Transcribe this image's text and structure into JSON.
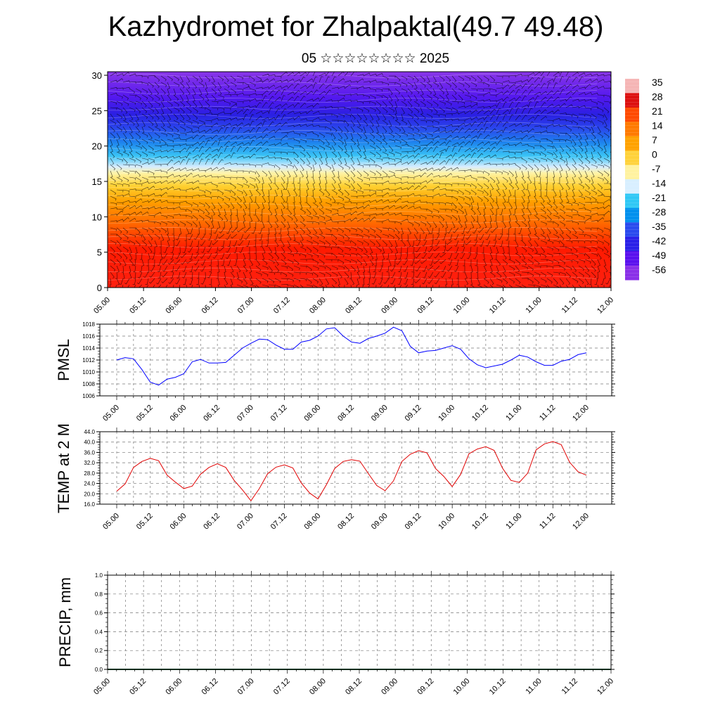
{
  "header": {
    "title": "Kazhydromet for Zhalpaktal(49.7 49.48)",
    "subtitle": "05 ☆☆☆☆☆☆☆☆ 2025"
  },
  "time_labels": [
    "05.00",
    "05.12",
    "06.00",
    "06.12",
    "07.00",
    "07.12",
    "08.00",
    "08.12",
    "09.00",
    "09.12",
    "10.00",
    "10.12",
    "11.00",
    "11.12",
    "12.00"
  ],
  "chart_data": [
    {
      "type": "heatmap",
      "title": "",
      "xlabel": "",
      "ylabel": "",
      "x_ticks": [
        "05.00",
        "05.12",
        "06.00",
        "06.12",
        "07.00",
        "07.12",
        "08.00",
        "08.12",
        "09.00",
        "09.12",
        "10.00",
        "10.12",
        "11.00",
        "11.12",
        "12.00"
      ],
      "y_ticks": [
        0,
        5,
        10,
        15,
        20,
        25,
        30
      ],
      "ylim": [
        0,
        30.5
      ],
      "colorbar_labels": [
        "35",
        "28",
        "21",
        "14",
        "7",
        "0",
        "-7",
        "-14",
        "-21",
        "-28",
        "-35",
        "-42",
        "-49",
        "-56"
      ],
      "colorbar_colors": [
        "#f5b5b5",
        "#dd1010",
        "#ff4a00",
        "#ff7a00",
        "#ffa200",
        "#ffd23a",
        "#fff2a0",
        "#d8efff",
        "#30c8f5",
        "#0090ee",
        "#2a4aee",
        "#2a20e8",
        "#5a10ee",
        "#8a30e8"
      ],
      "description_bands": [
        {
          "level": 2,
          "value": 33
        },
        {
          "level": 7,
          "value": 20
        },
        {
          "level": 12,
          "value": 8
        },
        {
          "level": 16,
          "value": -7
        },
        {
          "level": 19,
          "value": -28
        },
        {
          "level": 23,
          "value": -49
        },
        {
          "level": 28,
          "value": -56
        }
      ]
    },
    {
      "type": "line",
      "ylabel": "PMSL",
      "ylim": [
        1006,
        1018
      ],
      "y_ticks": [
        "1006",
        "1008",
        "1010",
        "1012",
        "1014",
        "1016",
        "1018"
      ],
      "x_ticks": [
        "05.00",
        "05.12",
        "06.00",
        "06.12",
        "07.00",
        "07.12",
        "08.00",
        "08.12",
        "09.00",
        "09.12",
        "10.00",
        "10.12",
        "11.00",
        "11.12",
        "12.00"
      ],
      "line_color": "#0000ff",
      "x": [
        0,
        3,
        6,
        9,
        12,
        15,
        18,
        21,
        24,
        27,
        30,
        33,
        36,
        39,
        42,
        45,
        48,
        51,
        54,
        57,
        60,
        63,
        66,
        69,
        72,
        75,
        78,
        81,
        84,
        87,
        90,
        93,
        96,
        99,
        102,
        105,
        108,
        111,
        114,
        117,
        120,
        123,
        126,
        129,
        132,
        135,
        138,
        141,
        144,
        147,
        150,
        153,
        156,
        159,
        162,
        165,
        168
      ],
      "values": [
        1012.0,
        1012.4,
        1012.2,
        1010.4,
        1008.3,
        1007.8,
        1008.8,
        1009.1,
        1009.7,
        1011.7,
        1012.1,
        1011.5,
        1011.5,
        1011.6,
        1012.8,
        1014.0,
        1014.8,
        1015.5,
        1015.4,
        1014.5,
        1013.8,
        1013.8,
        1015.0,
        1015.3,
        1016.0,
        1017.2,
        1017.4,
        1016.0,
        1015.0,
        1014.8,
        1015.6,
        1016.0,
        1016.5,
        1017.5,
        1016.9,
        1014.3,
        1013.2,
        1013.5,
        1013.6,
        1014.0,
        1014.4,
        1013.8,
        1012.2,
        1011.2,
        1010.7,
        1011.0,
        1011.3,
        1012.0,
        1012.8,
        1012.5,
        1011.7,
        1011.1,
        1011.1,
        1011.8,
        1012.1,
        1012.9,
        1013.2
      ]
    },
    {
      "type": "line",
      "ylabel": "TEMP at 2 M",
      "ylim": [
        16,
        44
      ],
      "y_ticks": [
        "16.0",
        "20.0",
        "24.0",
        "28.0",
        "32.0",
        "36.0",
        "40.0",
        "44.0"
      ],
      "x_ticks": [
        "05.00",
        "05.12",
        "06.00",
        "06.12",
        "07.00",
        "07.12",
        "08.00",
        "08.12",
        "09.00",
        "09.12",
        "10.00",
        "10.12",
        "11.00",
        "11.12",
        "12.00"
      ],
      "line_color": "#e00000",
      "x": [
        0,
        3,
        6,
        9,
        12,
        15,
        18,
        21,
        24,
        27,
        30,
        33,
        36,
        39,
        42,
        45,
        48,
        51,
        54,
        57,
        60,
        63,
        66,
        69,
        72,
        75,
        78,
        81,
        84,
        87,
        90,
        93,
        96,
        99,
        102,
        105,
        108,
        111,
        114,
        117,
        120,
        123,
        126,
        129,
        132,
        135,
        138,
        141,
        144,
        147,
        150,
        153,
        156,
        159,
        162,
        165,
        168
      ],
      "values": [
        21.0,
        23.8,
        30.2,
        32.5,
        33.7,
        32.8,
        27.2,
        24.5,
        22.0,
        23.0,
        27.6,
        30.2,
        31.6,
        30.2,
        25.2,
        21.5,
        17.3,
        22.0,
        27.8,
        30.3,
        31.2,
        30.0,
        24.2,
        20.3,
        18.0,
        23.5,
        29.8,
        32.5,
        33.2,
        32.6,
        27.8,
        23.2,
        21.2,
        25.0,
        32.5,
        35.3,
        36.7,
        35.8,
        29.8,
        26.7,
        22.8,
        27.5,
        35.5,
        37.3,
        38.2,
        36.8,
        29.9,
        25.2,
        24.4,
        28.0,
        37.0,
        39.3,
        40.2,
        39.0,
        32.2,
        28.5,
        27.2
      ]
    },
    {
      "type": "bar",
      "ylabel": "PRECIP, mm",
      "ylim": [
        0,
        1
      ],
      "y_ticks": [
        "0.0",
        "0.2",
        "0.4",
        "0.6",
        "0.8",
        "1.0"
      ],
      "x_ticks": [
        "05.00",
        "05.12",
        "06.00",
        "06.12",
        "07.00",
        "07.12",
        "08.00",
        "08.12",
        "09.00",
        "09.12",
        "10.00",
        "10.12",
        "11.00",
        "11.12",
        "12.00"
      ],
      "values": []
    }
  ]
}
